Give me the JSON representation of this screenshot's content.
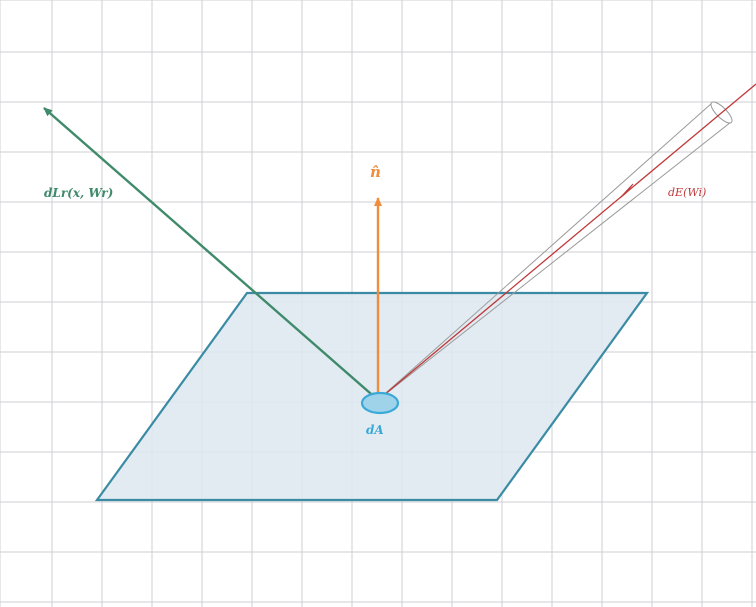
{
  "labels": {
    "reflected": "dLr(x, Wr)",
    "incident": "dE(Wi)",
    "normal": "n̂",
    "area": "dA"
  },
  "colors": {
    "grid": "#cfcfd4",
    "plane_fill": "#dce7ef",
    "plane_stroke": "#3b8ba5",
    "reflected": "#3f8a6a",
    "incident": "#c0393b",
    "normal": "#ef8d3c",
    "area": "#3aa9d8",
    "tube": "#9a9a9a"
  }
}
